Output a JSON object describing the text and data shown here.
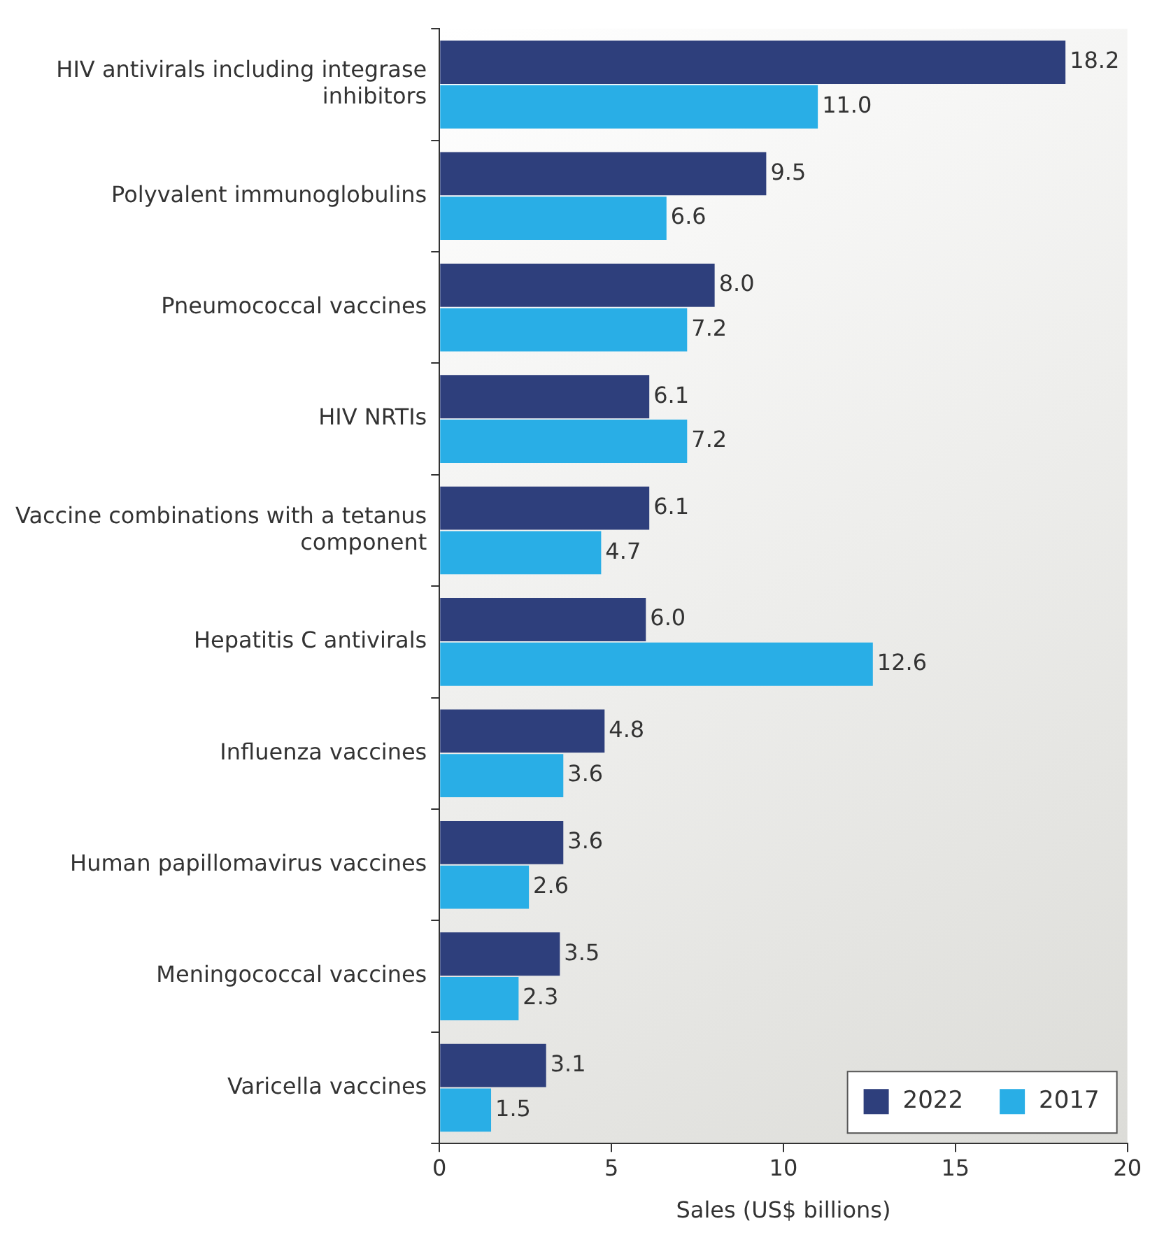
{
  "chart_data": {
    "type": "bar",
    "orientation": "horizontal",
    "xlabel": "Sales (US$ billions)",
    "categories": [
      "HIV antivirals including integrase inhibitors",
      "Polyvalent immunoglobulins",
      "Pneumococcal vaccines",
      "HIV NRTIs",
      "Vaccine combinations with a tetanus component",
      "Hepatitis C antivirals",
      "Influenza vaccines",
      "Human papillomavirus vaccines",
      "Meningococcal vaccines",
      "Varicella vaccines"
    ],
    "series": [
      {
        "name": "2022",
        "color": "#2e3f7c",
        "values": [
          18.2,
          9.5,
          8.0,
          6.1,
          6.1,
          6.0,
          4.8,
          3.6,
          3.5,
          3.1
        ],
        "value_labels": [
          "18.2",
          "9.5",
          "8.0",
          "6.1",
          "6.1",
          "6.0",
          "4.8",
          "3.6",
          "3.5",
          "3.1"
        ]
      },
      {
        "name": "2017",
        "color": "#29aee6",
        "values": [
          11.0,
          6.6,
          7.2,
          7.2,
          4.7,
          12.6,
          3.6,
          2.6,
          2.3,
          1.5
        ],
        "value_labels": [
          "11.0",
          "6.6",
          "7.2",
          "7.2",
          "4.7",
          "12.6",
          "3.6",
          "2.6",
          "2.3",
          "1.5"
        ]
      }
    ],
    "xlim": [
      0,
      20
    ],
    "xticks": [
      0,
      5,
      10,
      15,
      20
    ],
    "grid": false,
    "legend": "bottom right"
  }
}
